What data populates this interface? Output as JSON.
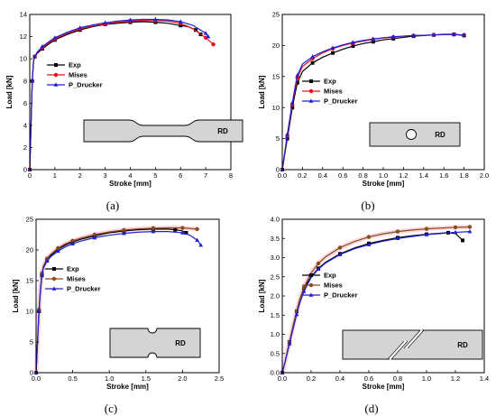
{
  "colors": {
    "exp": "#000000",
    "mises": "#e8101a",
    "mises_brown": "#8b4a1c",
    "pd": "#1f1fd6",
    "specimen": "#d4d4d4"
  },
  "chart_data": [
    {
      "id": "a",
      "type": "line",
      "panel_label": "(a)",
      "xlabel": "Stroke [mm]",
      "ylabel": "Load [kN]",
      "xlim": [
        0,
        8
      ],
      "ylim": [
        0,
        14
      ],
      "xticks": [
        "0",
        "1",
        "2",
        "3",
        "4",
        "5",
        "6",
        "7",
        "8"
      ],
      "yticks": [
        "0",
        "2",
        "4",
        "6",
        "8",
        "10",
        "12",
        "14"
      ],
      "mises_color": "mises",
      "legend": [
        "Exp",
        "Mises",
        "P_Drucker"
      ],
      "specimen_label": "RD",
      "specimen_type": "notched-dogbone",
      "series": [
        {
          "name": "Exp",
          "x": [
            0,
            0.05,
            0.1,
            0.15,
            0.2,
            0.3,
            0.5,
            0.8,
            1,
            1.5,
            2,
            2.5,
            3,
            3.5,
            4,
            4.5,
            5,
            5.5,
            6,
            6.3,
            6.6,
            6.8
          ],
          "y": [
            0,
            4,
            8,
            9.8,
            10.2,
            10.5,
            10.9,
            11.4,
            11.7,
            12.2,
            12.6,
            12.9,
            13.1,
            13.2,
            13.3,
            13.35,
            13.3,
            13.2,
            13.0,
            12.9,
            12.6,
            12.2
          ]
        },
        {
          "name": "Mises",
          "x": [
            0,
            0.05,
            0.1,
            0.15,
            0.2,
            0.3,
            0.5,
            0.8,
            1,
            1.5,
            2,
            2.5,
            3,
            3.5,
            4,
            4.5,
            5,
            5.5,
            6,
            6.5,
            7,
            7.3
          ],
          "y": [
            0,
            4,
            8,
            9.8,
            10.2,
            10.6,
            11.0,
            11.5,
            11.8,
            12.3,
            12.7,
            12.95,
            13.15,
            13.3,
            13.4,
            13.45,
            13.45,
            13.4,
            13.2,
            12.7,
            11.9,
            11.3
          ]
        },
        {
          "name": "P_Drucker",
          "x": [
            0,
            0.05,
            0.1,
            0.15,
            0.2,
            0.3,
            0.5,
            0.8,
            1,
            1.5,
            2,
            2.5,
            3,
            3.5,
            4,
            4.5,
            5,
            5.5,
            6,
            6.5,
            7,
            7.1
          ],
          "y": [
            0,
            4,
            8,
            9.8,
            10.2,
            10.6,
            11.1,
            11.6,
            11.9,
            12.4,
            12.8,
            13.05,
            13.25,
            13.4,
            13.5,
            13.55,
            13.55,
            13.5,
            13.35,
            13.0,
            12.3,
            12.0
          ]
        }
      ]
    },
    {
      "id": "b",
      "type": "line",
      "panel_label": "(b)",
      "xlabel": "Stroke [mm]",
      "ylabel": "Load [kN]",
      "xlim": [
        0,
        2.0
      ],
      "ylim": [
        0,
        25
      ],
      "xticks": [
        "0.0",
        "0.2",
        "0.4",
        "0.6",
        "0.8",
        "1.0",
        "1.2",
        "1.4",
        "1.6",
        "1.8",
        "2.0"
      ],
      "yticks": [
        "0",
        "5",
        "10",
        "15",
        "20",
        "25"
      ],
      "mises_color": "mises",
      "legend": [
        "Exp",
        "Mises",
        "P_Drucker"
      ],
      "specimen_label": "RD",
      "specimen_type": "hole",
      "series": [
        {
          "name": "Exp",
          "x": [
            0,
            0.02,
            0.05,
            0.08,
            0.1,
            0.13,
            0.15,
            0.2,
            0.3,
            0.4,
            0.5,
            0.6,
            0.7,
            0.8,
            0.9,
            1.0,
            1.1,
            1.2,
            1.3,
            1.4,
            1.5,
            1.6,
            1.7,
            1.8
          ],
          "y": [
            0,
            2,
            5,
            8,
            10,
            12.5,
            14,
            15.8,
            17.2,
            18.1,
            18.8,
            19.4,
            19.9,
            20.3,
            20.6,
            20.9,
            21.1,
            21.3,
            21.5,
            21.6,
            21.7,
            21.8,
            21.8,
            21.6
          ]
        },
        {
          "name": "Mises",
          "x": [
            0,
            0.02,
            0.05,
            0.08,
            0.1,
            0.13,
            0.15,
            0.2,
            0.3,
            0.4,
            0.5,
            0.6,
            0.7,
            0.8,
            0.9,
            1.0,
            1.1,
            1.2,
            1.3,
            1.4,
            1.5,
            1.6,
            1.7,
            1.8
          ],
          "y": [
            0,
            2.2,
            5.5,
            8.5,
            10.5,
            13.2,
            14.8,
            16.6,
            17.9,
            18.8,
            19.5,
            20.0,
            20.4,
            20.7,
            21.0,
            21.2,
            21.35,
            21.5,
            21.6,
            21.65,
            21.7,
            21.75,
            21.75,
            21.7
          ]
        },
        {
          "name": "P_Drucker",
          "x": [
            0,
            0.02,
            0.05,
            0.08,
            0.1,
            0.13,
            0.15,
            0.2,
            0.3,
            0.4,
            0.5,
            0.6,
            0.7,
            0.8,
            0.9,
            1.0,
            1.1,
            1.2,
            1.3,
            1.4,
            1.5,
            1.6,
            1.7,
            1.8
          ],
          "y": [
            0,
            2.3,
            5.7,
            8.8,
            10.8,
            13.6,
            15.2,
            17.0,
            18.2,
            19.0,
            19.6,
            20.1,
            20.5,
            20.8,
            21.05,
            21.25,
            21.4,
            21.5,
            21.6,
            21.65,
            21.7,
            21.75,
            21.75,
            21.7
          ]
        }
      ]
    },
    {
      "id": "c",
      "type": "line",
      "panel_label": "(c)",
      "xlabel": "Stroke [mm]",
      "ylabel": "Load [kN]",
      "xlim": [
        0,
        2.5
      ],
      "ylim": [
        0,
        25
      ],
      "xticks": [
        "0.0",
        "0.5",
        "1.0",
        "1.5",
        "2.0",
        "2.5"
      ],
      "yticks": [
        "0",
        "5",
        "10",
        "15",
        "20",
        "25"
      ],
      "mises_color": "mises_brown",
      "legend": [
        "Exp",
        "Mises",
        "P_Drucker"
      ],
      "specimen_label": "RD",
      "specimen_type": "notch",
      "series": [
        {
          "name": "Exp",
          "x": [
            0,
            0.02,
            0.04,
            0.06,
            0.08,
            0.1,
            0.15,
            0.2,
            0.3,
            0.4,
            0.5,
            0.6,
            0.8,
            1.0,
            1.2,
            1.4,
            1.6,
            1.8,
            1.9,
            2.0,
            2.05
          ],
          "y": [
            0,
            5,
            10,
            13.5,
            16,
            17.2,
            18.4,
            19.1,
            20.1,
            20.8,
            21.3,
            21.7,
            22.3,
            22.8,
            23.1,
            23.3,
            23.4,
            23.4,
            23.3,
            23.1,
            22.8
          ]
        },
        {
          "name": "Mises",
          "x": [
            0,
            0.02,
            0.04,
            0.06,
            0.08,
            0.1,
            0.15,
            0.2,
            0.3,
            0.4,
            0.5,
            0.6,
            0.8,
            1.0,
            1.2,
            1.4,
            1.6,
            1.8,
            2.0,
            2.2
          ],
          "y": [
            0,
            5.2,
            10.3,
            13.8,
            16.2,
            17.4,
            18.6,
            19.3,
            20.3,
            21.0,
            21.5,
            21.9,
            22.5,
            22.95,
            23.25,
            23.45,
            23.55,
            23.6,
            23.6,
            23.4
          ]
        },
        {
          "name": "P_Drucker",
          "x": [
            0,
            0.02,
            0.04,
            0.06,
            0.08,
            0.1,
            0.15,
            0.2,
            0.3,
            0.4,
            0.5,
            0.6,
            0.8,
            1.0,
            1.2,
            1.4,
            1.6,
            1.8,
            2.0,
            2.1,
            2.2,
            2.25
          ],
          "y": [
            0,
            5,
            10,
            13.4,
            15.8,
            17.0,
            18.2,
            18.9,
            19.8,
            20.5,
            21.0,
            21.4,
            22.0,
            22.4,
            22.7,
            22.9,
            23.0,
            23.0,
            22.8,
            22.4,
            21.6,
            20.8
          ]
        }
      ]
    },
    {
      "id": "d",
      "type": "line",
      "panel_label": "(d)",
      "xlabel": "Stroke [mm]",
      "ylabel": "Load [kN]",
      "xlim": [
        0,
        1.4
      ],
      "ylim": [
        0,
        4.0
      ],
      "xticks": [
        "0.0",
        "0.2",
        "0.4",
        "0.6",
        "0.8",
        "1.0",
        "1.2",
        "1.4"
      ],
      "yticks": [
        "0.0",
        "0.5",
        "1.0",
        "1.5",
        "2.0",
        "2.5",
        "3.0",
        "3.5",
        "4.0"
      ],
      "mises_color": "mises_brown",
      "legend": [
        "Exp",
        "Mises",
        "P_Drucker"
      ],
      "specimen_label": "RD",
      "specimen_type": "shear",
      "series": [
        {
          "name": "Exp",
          "x": [
            0,
            0.02,
            0.05,
            0.08,
            0.1,
            0.12,
            0.15,
            0.2,
            0.25,
            0.3,
            0.4,
            0.5,
            0.6,
            0.7,
            0.8,
            0.9,
            1.0,
            1.1,
            1.15,
            1.2,
            1.25
          ],
          "y": [
            0,
            0.3,
            0.8,
            1.3,
            1.6,
            1.9,
            2.2,
            2.5,
            2.72,
            2.88,
            3.1,
            3.25,
            3.37,
            3.45,
            3.52,
            3.57,
            3.61,
            3.64,
            3.65,
            3.63,
            3.45
          ]
        },
        {
          "name": "Mises",
          "x": [
            0,
            0.02,
            0.05,
            0.08,
            0.1,
            0.12,
            0.15,
            0.2,
            0.25,
            0.3,
            0.4,
            0.5,
            0.6,
            0.7,
            0.8,
            0.9,
            1.0,
            1.1,
            1.2,
            1.3
          ],
          "y": [
            0,
            0.3,
            0.8,
            1.3,
            1.6,
            1.9,
            2.22,
            2.6,
            2.85,
            3.02,
            3.26,
            3.42,
            3.54,
            3.62,
            3.68,
            3.72,
            3.75,
            3.77,
            3.79,
            3.8
          ]
        },
        {
          "name": "P_Drucker",
          "x": [
            0,
            0.02,
            0.05,
            0.08,
            0.1,
            0.12,
            0.15,
            0.2,
            0.25,
            0.3,
            0.4,
            0.5,
            0.6,
            0.7,
            0.8,
            0.9,
            1.0,
            1.1,
            1.2,
            1.3
          ],
          "y": [
            0,
            0.28,
            0.75,
            1.22,
            1.52,
            1.8,
            2.12,
            2.48,
            2.7,
            2.86,
            3.08,
            3.23,
            3.34,
            3.43,
            3.5,
            3.55,
            3.6,
            3.63,
            3.66,
            3.68
          ]
        }
      ]
    }
  ]
}
